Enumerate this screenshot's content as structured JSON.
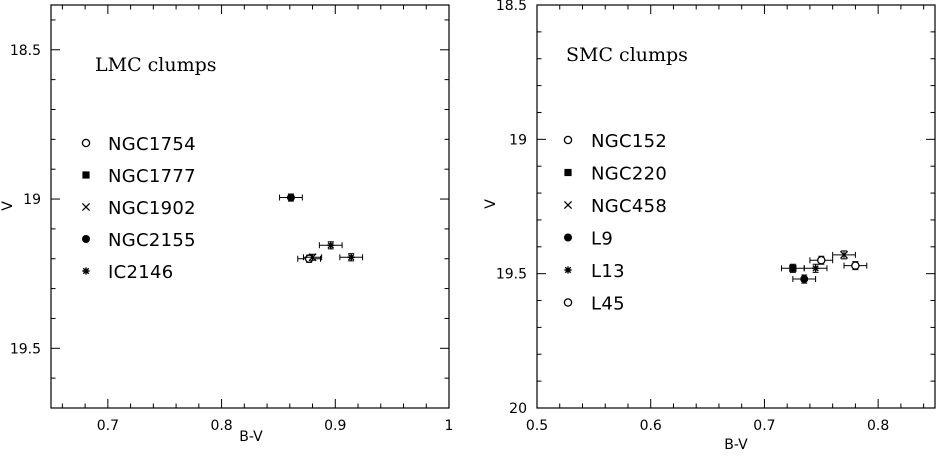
{
  "chart_data": [
    {
      "type": "scatter",
      "title": "LMC clumps",
      "xlabel": "B-V",
      "ylabel": "V",
      "xlim": [
        0.65,
        1.0
      ],
      "ylim": [
        19.7,
        18.35
      ],
      "y_inverted": true,
      "xticks": [
        "0.7",
        "0.8",
        "0.9",
        "1"
      ],
      "yticks": [
        "18.5",
        "19",
        "19.5"
      ],
      "grid": false,
      "legend_position": "left",
      "series": [
        {
          "name": "NGC1754",
          "marker": "open-circle",
          "points": [
            {
              "x": 0.877,
              "y": 19.2,
              "xerr": 0.01,
              "yerr": 0.012
            }
          ]
        },
        {
          "name": "NGC1777",
          "marker": "filled-square",
          "points": []
        },
        {
          "name": "NGC1902",
          "marker": "cross",
          "points": [
            {
              "x": 0.88,
              "y": 19.195,
              "xerr": 0.008,
              "yerr": 0.01
            }
          ]
        },
        {
          "name": "NGC2155",
          "marker": "filled-circle",
          "points": [
            {
              "x": 0.861,
              "y": 18.995,
              "xerr": 0.01,
              "yerr": 0.012
            }
          ]
        },
        {
          "name": "IC2146",
          "marker": "asterisk",
          "points": [
            {
              "x": 0.896,
              "y": 19.155,
              "xerr": 0.01,
              "yerr": 0.012
            },
            {
              "x": 0.914,
              "y": 19.195,
              "xerr": 0.01,
              "yerr": 0.012
            }
          ]
        }
      ]
    },
    {
      "type": "scatter",
      "title": "SMC clumps",
      "xlabel": "B-V",
      "ylabel": "V",
      "xlim": [
        0.5,
        0.85
      ],
      "ylim": [
        20.0,
        18.5
      ],
      "y_inverted": true,
      "xticks": [
        "0.5",
        "0.6",
        "0.7",
        "0.8"
      ],
      "yticks": [
        "18.5",
        "19",
        "19.5",
        "20"
      ],
      "grid": false,
      "legend_position": "left",
      "series": [
        {
          "name": "NGC152",
          "marker": "open-circle",
          "points": [
            {
              "x": 0.78,
              "y": 19.47,
              "xerr": 0.01,
              "yerr": 0.015
            }
          ]
        },
        {
          "name": "NGC220",
          "marker": "filled-square",
          "points": [
            {
              "x": 0.725,
              "y": 19.48,
              "xerr": 0.01,
              "yerr": 0.015
            }
          ]
        },
        {
          "name": "NGC458",
          "marker": "cross",
          "points": [
            {
              "x": 0.77,
              "y": 19.43,
              "xerr": 0.01,
              "yerr": 0.015
            }
          ]
        },
        {
          "name": "L9",
          "marker": "filled-circle",
          "points": [
            {
              "x": 0.735,
              "y": 19.52,
              "xerr": 0.01,
              "yerr": 0.015
            }
          ]
        },
        {
          "name": "L13",
          "marker": "asterisk",
          "points": [
            {
              "x": 0.745,
              "y": 19.48,
              "xerr": 0.01,
              "yerr": 0.015
            }
          ]
        },
        {
          "name": "L45",
          "marker": "open-circle",
          "points": [
            {
              "x": 0.75,
              "y": 19.45,
              "xerr": 0.01,
              "yerr": 0.015
            }
          ]
        }
      ]
    }
  ]
}
